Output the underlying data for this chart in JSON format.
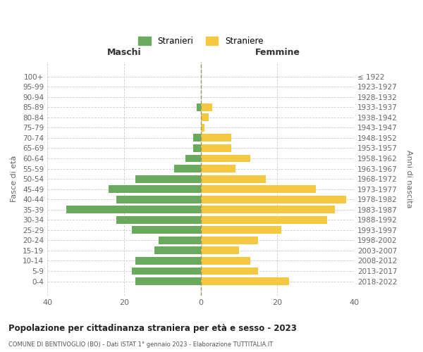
{
  "age_groups": [
    "0-4",
    "5-9",
    "10-14",
    "15-19",
    "20-24",
    "25-29",
    "30-34",
    "35-39",
    "40-44",
    "45-49",
    "50-54",
    "55-59",
    "60-64",
    "65-69",
    "70-74",
    "75-79",
    "80-84",
    "85-89",
    "90-94",
    "95-99",
    "100+"
  ],
  "birth_years": [
    "2018-2022",
    "2013-2017",
    "2008-2012",
    "2003-2007",
    "1998-2002",
    "1993-1997",
    "1988-1992",
    "1983-1987",
    "1978-1982",
    "1973-1977",
    "1968-1972",
    "1963-1967",
    "1958-1962",
    "1953-1957",
    "1948-1952",
    "1943-1947",
    "1938-1942",
    "1933-1937",
    "1928-1932",
    "1923-1927",
    "≤ 1922"
  ],
  "males": [
    17,
    18,
    17,
    12,
    11,
    18,
    22,
    35,
    22,
    24,
    17,
    7,
    4,
    2,
    2,
    0,
    0,
    1,
    0,
    0,
    0
  ],
  "females": [
    23,
    15,
    13,
    10,
    15,
    21,
    33,
    35,
    38,
    30,
    17,
    9,
    13,
    8,
    8,
    1,
    2,
    3,
    0,
    0,
    0
  ],
  "male_color": "#6aaa5e",
  "female_color": "#f5c842",
  "title": "Popolazione per cittadinanza straniera per età e sesso - 2023",
  "subtitle": "COMUNE DI BENTIVOGLIO (BO) - Dati ISTAT 1° gennaio 2023 - Elaborazione TUTTITALIA.IT",
  "xlabel_left": "Maschi",
  "xlabel_right": "Femmine",
  "ylabel_left": "Fasce di età",
  "ylabel_right": "Anni di nascita",
  "legend_male": "Stranieri",
  "legend_female": "Straniere",
  "xlim": 40,
  "background_color": "#ffffff",
  "grid_color": "#cccccc"
}
